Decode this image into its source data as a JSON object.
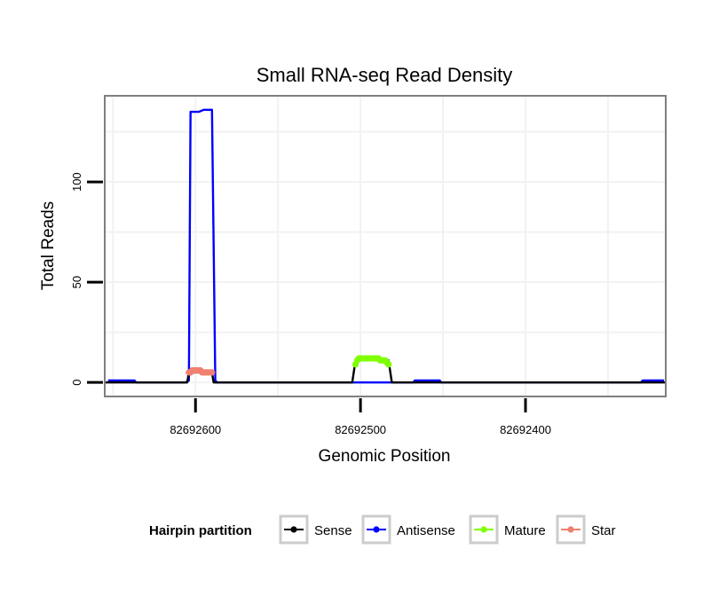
{
  "chart_data": {
    "type": "line",
    "title": "Small RNA-seq Read Density",
    "xlabel": "Genomic Position",
    "ylabel": "Total Reads",
    "x_reversed": true,
    "xlim": [
      82692655,
      82692315
    ],
    "ylim": [
      -7,
      143
    ],
    "x_ticks": [
      82692600,
      82692500,
      82692400
    ],
    "x_tick_labels": [
      "82692600",
      "82692500",
      "82692400"
    ],
    "y_ticks": [
      0,
      50,
      100
    ],
    "y_tick_labels": [
      "0",
      "50",
      "100"
    ],
    "grid": true,
    "legend": {
      "title": "Hairpin partition",
      "position": "bottom",
      "entries": [
        {
          "label": "Sense",
          "color": "#000000"
        },
        {
          "label": "Antisense",
          "color": "#0000FF"
        },
        {
          "label": "Mature",
          "color": "#7FFF00"
        },
        {
          "label": "Star",
          "color": "#F08070"
        }
      ]
    },
    "series": [
      {
        "name": "Sense",
        "color": "#000000",
        "markers": false,
        "x": [
          82692655,
          82692605,
          82692604,
          82692590,
          82692589,
          82692505,
          82692503,
          82692483,
          82692481,
          82692315
        ],
        "y": [
          0,
          0,
          5,
          5,
          0,
          0,
          11,
          11,
          0,
          0
        ]
      },
      {
        "name": "Antisense",
        "color": "#0000FF",
        "markers": false,
        "x": [
          82692653,
          82692637,
          82692636,
          82692606,
          82692604,
          82692603,
          82692598,
          82692595,
          82692590,
          82692588,
          82692587,
          82692500,
          82692468,
          82692467,
          82692452,
          82692451,
          82692330,
          82692329,
          82692316
        ],
        "y": [
          1,
          1,
          0,
          0,
          1,
          135,
          135,
          136,
          136,
          1,
          0,
          0,
          0,
          1,
          1,
          0,
          0,
          1,
          1
        ]
      },
      {
        "name": "Mature",
        "color": "#7FFF00",
        "markers": true,
        "x": [
          82692503,
          82692502,
          82692501,
          82692500,
          82692499,
          82692498,
          82692497,
          82692496,
          82692495,
          82692494,
          82692493,
          82692492,
          82692491,
          82692490,
          82692489,
          82692488,
          82692487,
          82692486,
          82692485,
          82692484,
          82692483
        ],
        "y": [
          9,
          11,
          12,
          12,
          12,
          12,
          12,
          12,
          12,
          12,
          12,
          12,
          12,
          12,
          12,
          11,
          11,
          11,
          11,
          10,
          9
        ]
      },
      {
        "name": "Star",
        "color": "#F08070",
        "markers": true,
        "x": [
          82692604,
          82692603,
          82692602,
          82692601,
          82692600,
          82692599,
          82692598,
          82692597,
          82692596,
          82692595,
          82692594,
          82692593,
          82692592,
          82692591,
          82692590
        ],
        "y": [
          5,
          5,
          6,
          6,
          6,
          6,
          6,
          6,
          5,
          5,
          5,
          5,
          5,
          5,
          5
        ]
      }
    ]
  }
}
